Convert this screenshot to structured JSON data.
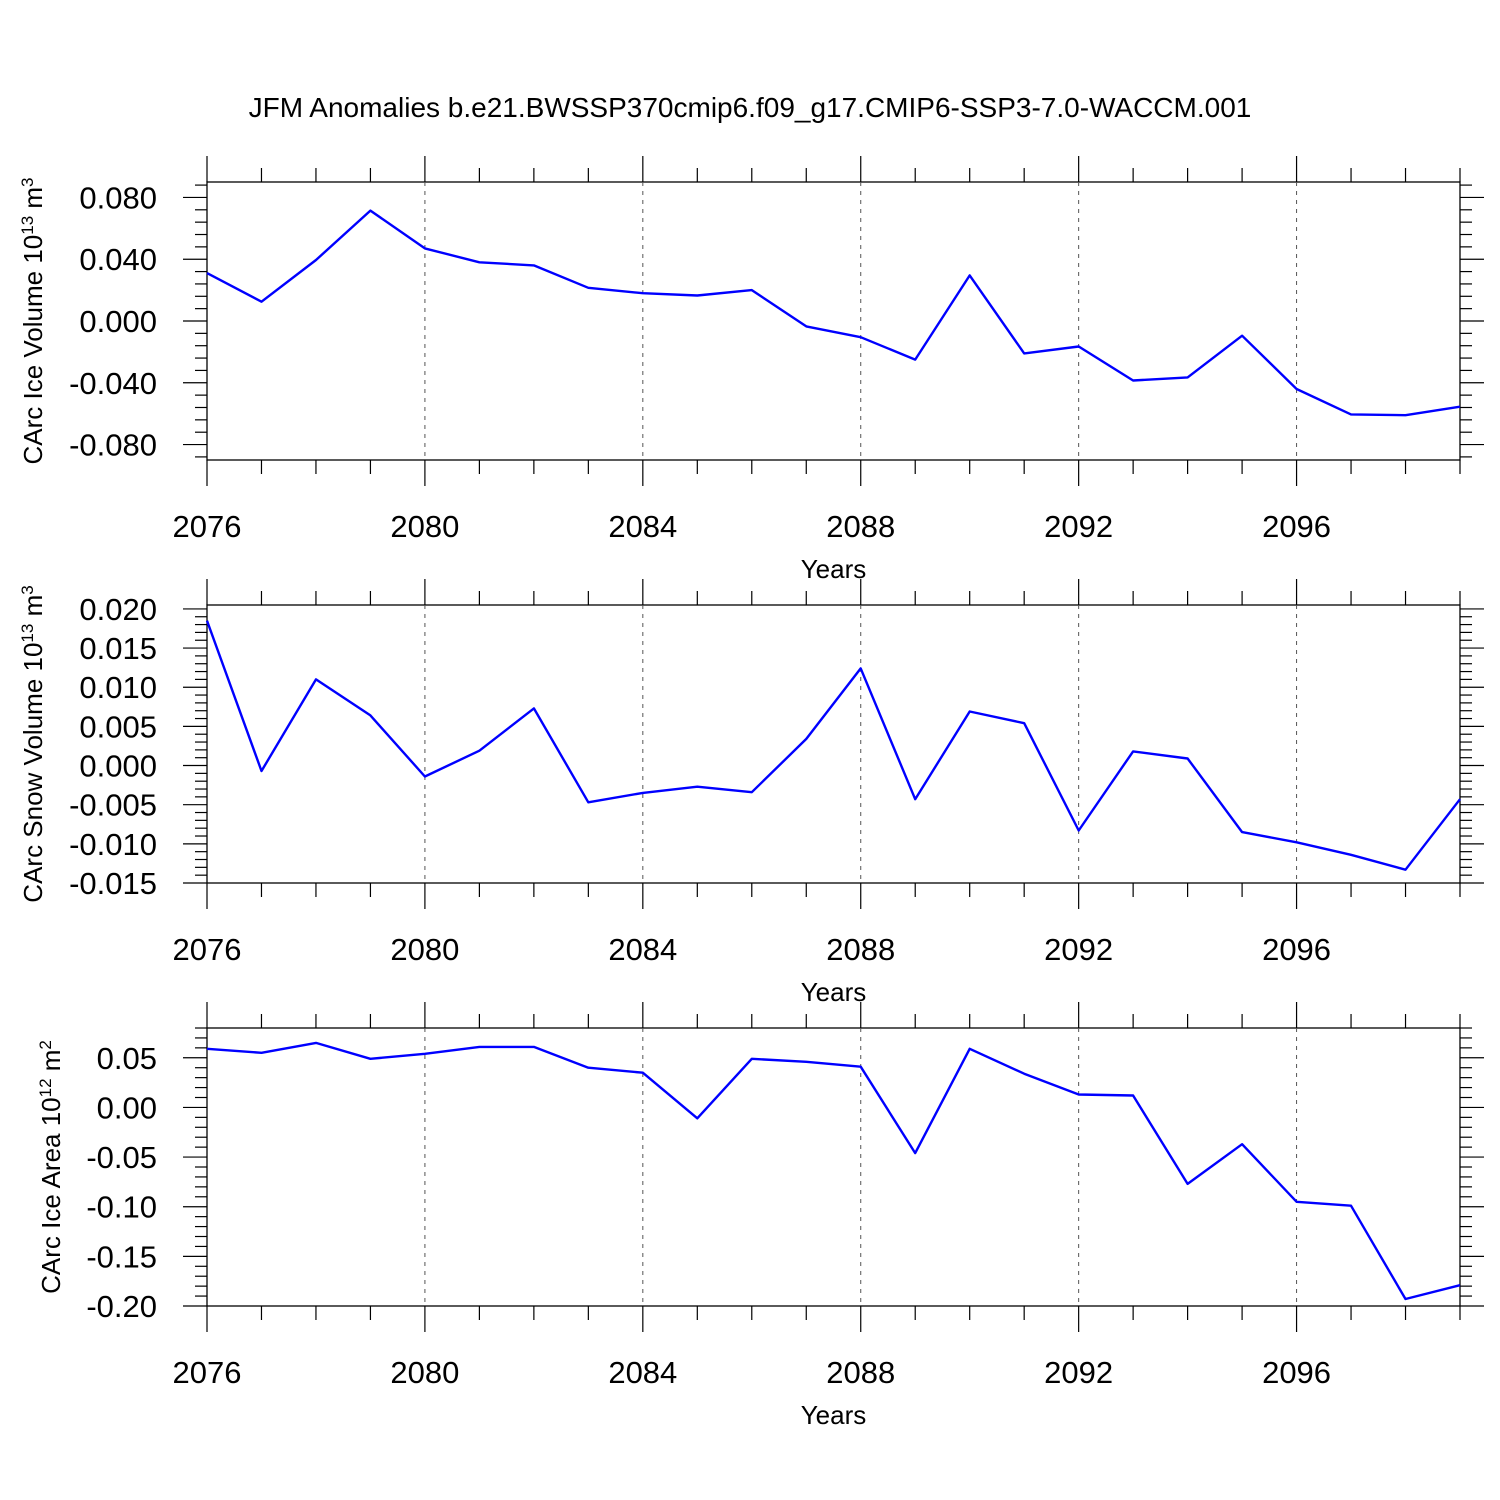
{
  "title": "JFM Anomalies b.e21.BWSSP370cmip6.f09_g17.CMIP6-SSP3-7.0-WACCM.001",
  "line_color": "#0000ff",
  "chart_data": [
    {
      "type": "line",
      "name": "CArc Ice Volume",
      "ylabel": {
        "text": "CArc Ice Volume 10",
        "sup": "13",
        "unit": " m",
        "unit_sup": "3"
      },
      "xlabel": "Years",
      "xlim": [
        2076,
        2099
      ],
      "ylim": [
        -0.09,
        0.09
      ],
      "xticks": [
        "2076",
        "2080",
        "2084",
        "2088",
        "2092",
        "2096"
      ],
      "yticks": [
        "0.080",
        "0.040",
        "0.000",
        "-0.040",
        "-0.080"
      ],
      "ytick_values": [
        0.08,
        0.04,
        0.0,
        -0.04,
        -0.08
      ],
      "x": [
        2076,
        2077,
        2078,
        2079,
        2080,
        2081,
        2082,
        2083,
        2084,
        2085,
        2086,
        2087,
        2088,
        2089,
        2090,
        2091,
        2092,
        2093,
        2094,
        2095,
        2096,
        2097,
        2098,
        2099
      ],
      "values": [
        0.031,
        0.0125,
        0.0395,
        0.0715,
        0.047,
        0.038,
        0.036,
        0.0215,
        0.018,
        0.0165,
        0.02,
        -0.0035,
        -0.0105,
        -0.025,
        0.0295,
        -0.021,
        -0.0165,
        -0.0385,
        -0.0365,
        -0.0095,
        -0.044,
        -0.0605,
        -0.061,
        -0.0555
      ]
    },
    {
      "type": "line",
      "name": "CArc Snow Volume",
      "ylabel": {
        "text": "CArc Snow Volume 10",
        "sup": "13",
        "unit": " m",
        "unit_sup": "3"
      },
      "xlabel": "Years",
      "xlim": [
        2076,
        2099
      ],
      "ylim": [
        -0.015,
        0.0205
      ],
      "xticks": [
        "2076",
        "2080",
        "2084",
        "2088",
        "2092",
        "2096"
      ],
      "yticks": [
        "0.020",
        "0.015",
        "0.010",
        "0.005",
        "0.000",
        "-0.005",
        "-0.010",
        "-0.015"
      ],
      "ytick_values": [
        0.02,
        0.015,
        0.01,
        0.005,
        0.0,
        -0.005,
        -0.01,
        -0.015
      ],
      "x": [
        2076,
        2077,
        2078,
        2079,
        2080,
        2081,
        2082,
        2083,
        2084,
        2085,
        2086,
        2087,
        2088,
        2089,
        2090,
        2091,
        2092,
        2093,
        2094,
        2095,
        2096,
        2097,
        2098,
        2099
      ],
      "values": [
        0.0185,
        -0.0007,
        0.011,
        0.0064,
        -0.0014,
        0.0019,
        0.0073,
        -0.0047,
        -0.0035,
        -0.0027,
        -0.0034,
        0.0034,
        0.0124,
        -0.0043,
        0.0069,
        0.0054,
        -0.0083,
        0.0018,
        0.0009,
        -0.0085,
        -0.0098,
        -0.0114,
        -0.0133,
        -0.0043
      ]
    },
    {
      "type": "line",
      "name": "CArc Ice Area",
      "ylabel": {
        "text": "CArc Ice Area 10",
        "sup": "12",
        "unit": " m",
        "unit_sup": "2"
      },
      "xlabel": "Years",
      "xlim": [
        2076,
        2099
      ],
      "ylim": [
        -0.2,
        0.08
      ],
      "xticks": [
        "2076",
        "2080",
        "2084",
        "2088",
        "2092",
        "2096"
      ],
      "yticks": [
        "0.05",
        "0.00",
        "-0.05",
        "-0.10",
        "-0.15",
        "-0.20"
      ],
      "ytick_values": [
        0.05,
        0.0,
        -0.05,
        -0.1,
        -0.15,
        -0.2
      ],
      "x": [
        2076,
        2077,
        2078,
        2079,
        2080,
        2081,
        2082,
        2083,
        2084,
        2085,
        2086,
        2087,
        2088,
        2089,
        2090,
        2091,
        2092,
        2093,
        2094,
        2095,
        2096,
        2097,
        2098,
        2099
      ],
      "values": [
        0.059,
        0.055,
        0.065,
        0.049,
        0.054,
        0.061,
        0.061,
        0.04,
        0.035,
        -0.011,
        0.049,
        0.046,
        0.041,
        -0.046,
        0.059,
        0.034,
        0.013,
        0.012,
        -0.077,
        -0.037,
        -0.095,
        -0.099,
        -0.193,
        -0.179
      ]
    }
  ]
}
